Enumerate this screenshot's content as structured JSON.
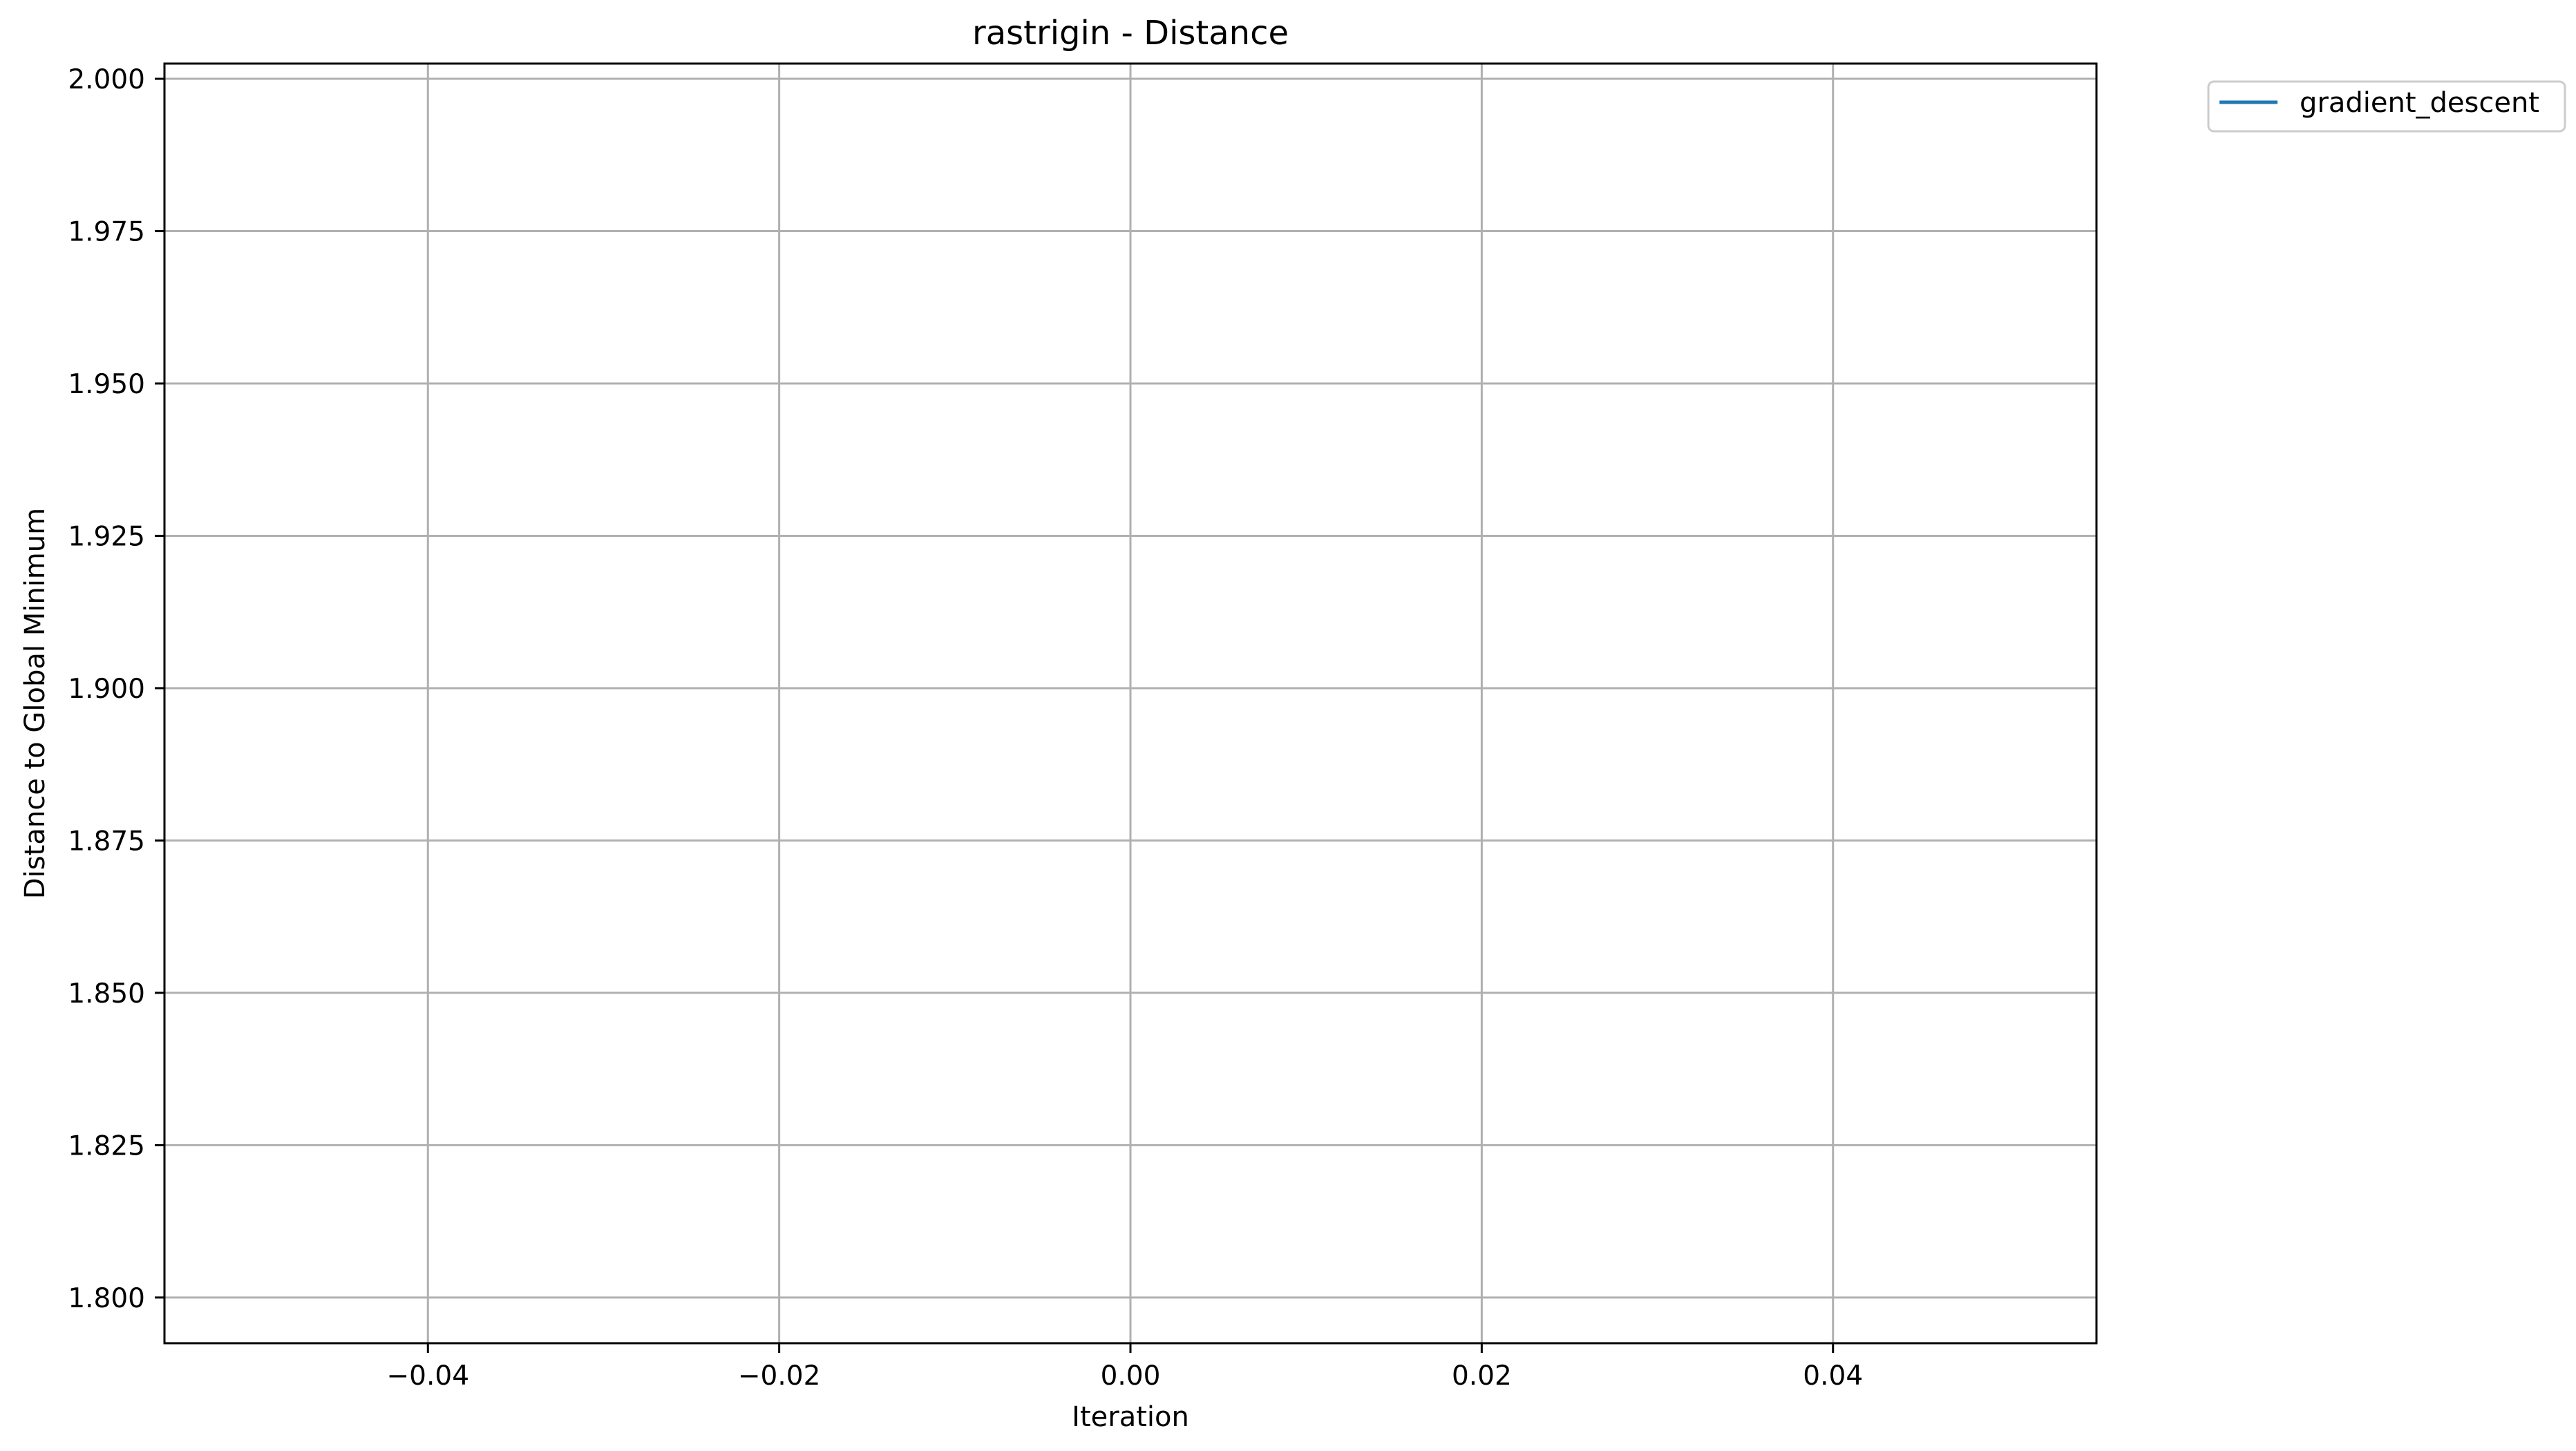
{
  "chart_data": {
    "type": "line",
    "title": "rastrigin - Distance",
    "xlabel": "Iteration",
    "ylabel": "Distance to Global Minimum",
    "xlim": [
      -0.055,
      0.055
    ],
    "ylim": [
      1.7925,
      2.0025
    ],
    "x_ticks": [
      -0.04,
      -0.02,
      0.0,
      0.02,
      0.04
    ],
    "x_tick_labels": [
      "−0.04",
      "−0.02",
      "0.00",
      "0.02",
      "0.04"
    ],
    "y_ticks": [
      1.8,
      1.825,
      1.85,
      1.875,
      1.9,
      1.925,
      1.95,
      1.975,
      2.0
    ],
    "y_tick_labels": [
      "1.800",
      "1.825",
      "1.850",
      "1.875",
      "1.900",
      "1.925",
      "1.950",
      "1.975",
      "2.000"
    ],
    "grid": true,
    "legend_position": "outside-top-right",
    "series": [
      {
        "name": "gradient_descent",
        "color": "#1f77b4",
        "x": [],
        "y": []
      }
    ]
  }
}
